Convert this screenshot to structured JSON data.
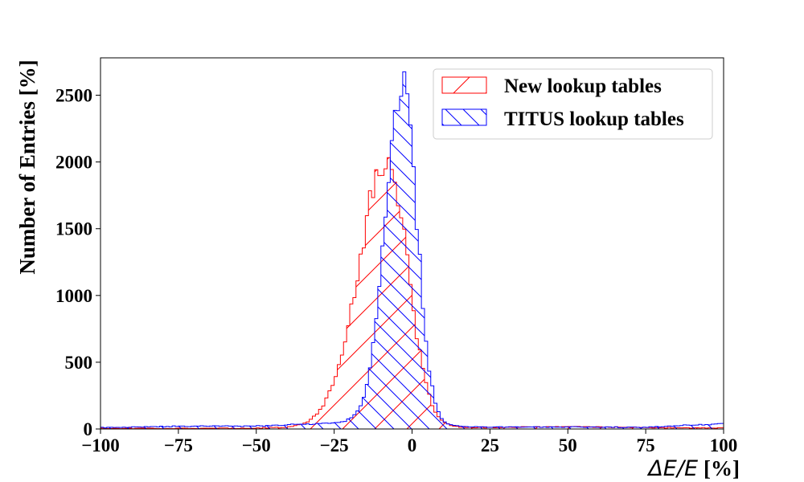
{
  "chart_data": {
    "type": "histogram",
    "title": "",
    "xlabel_math": "ΔE/E",
    "xlabel_unit": "[%]",
    "ylabel": "Number of Entries [%]",
    "xlim": [
      -100,
      100
    ],
    "ylim": [
      0,
      2780
    ],
    "xticks": [
      -100,
      -75,
      -50,
      -25,
      0,
      25,
      50,
      75,
      100
    ],
    "xtick_labels": [
      "−100",
      "−75",
      "−50",
      "−25",
      "0",
      "25",
      "50",
      "75",
      "100"
    ],
    "yticks": [
      0,
      500,
      1000,
      1500,
      2000,
      2500
    ],
    "ytick_labels": [
      "0",
      "500",
      "1000",
      "1500",
      "2000",
      "2500"
    ],
    "grid": false,
    "legend_position": "top-right",
    "bin_range": [
      -100,
      100
    ],
    "bin_count": 200,
    "series": [
      {
        "name": "New lookup tables",
        "color": "#ff0000",
        "hatch": "/",
        "baseline": 8,
        "peaks": [
          {
            "center": -8,
            "amplitude": 2000,
            "sigma_left": 9,
            "sigma_right": 6.5
          }
        ],
        "tail_points": [
          [
            -100,
            5
          ],
          [
            -60,
            5
          ],
          [
            -40,
            10
          ],
          [
            -30,
            30
          ],
          [
            20,
            10
          ],
          [
            50,
            18
          ],
          [
            75,
            10
          ],
          [
            100,
            8
          ]
        ]
      },
      {
        "name": "TITUS lookup tables",
        "color": "#0000ff",
        "hatch": "\\",
        "baseline": 15,
        "peaks": [
          {
            "center": -3,
            "amplitude": 2560,
            "sigma_left": 5.5,
            "sigma_right": 4.5
          }
        ],
        "tail_points": [
          [
            -100,
            10
          ],
          [
            -75,
            20
          ],
          [
            -50,
            22
          ],
          [
            -30,
            40
          ],
          [
            -20,
            55
          ],
          [
            20,
            15
          ],
          [
            50,
            15
          ],
          [
            75,
            12
          ],
          [
            99,
            40
          ]
        ]
      }
    ]
  }
}
